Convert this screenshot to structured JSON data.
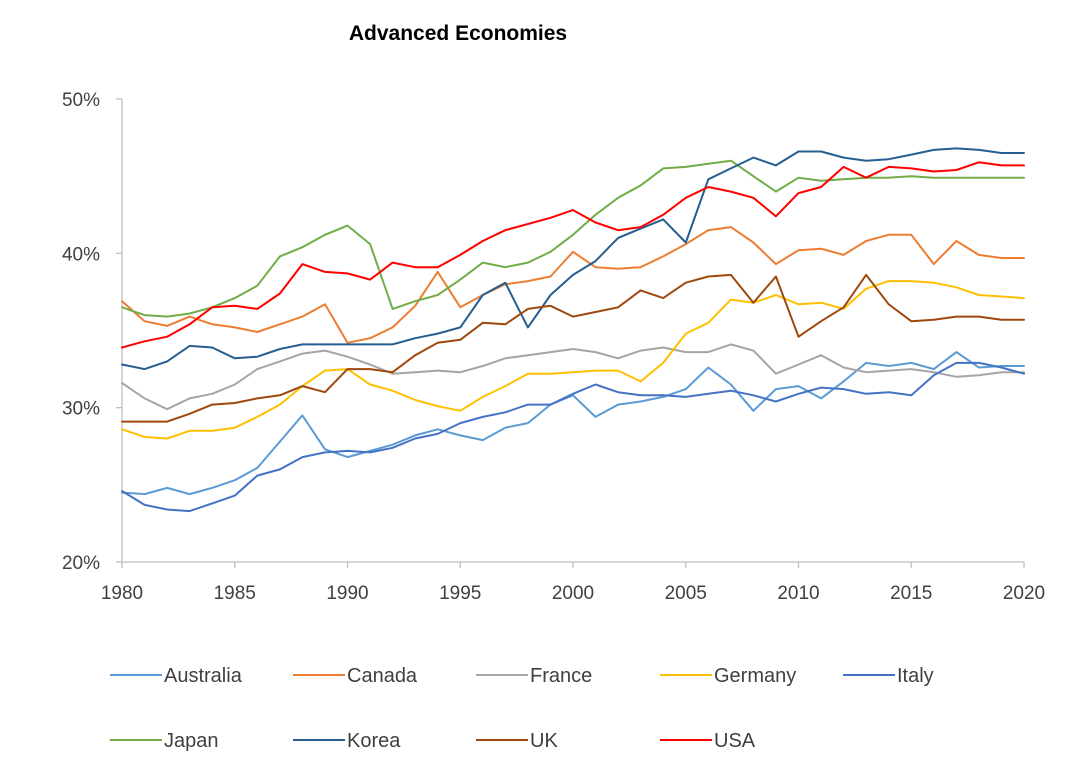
{
  "chart_data": {
    "type": "line",
    "title": "Advanced Economies",
    "xlabel": "",
    "ylabel": "",
    "xlim": [
      1980,
      2020
    ],
    "ylim": [
      20,
      50
    ],
    "x_ticks": [
      1980,
      1985,
      1990,
      1995,
      2000,
      2005,
      2010,
      2015,
      2020
    ],
    "y_ticks": [
      20,
      30,
      40,
      50
    ],
    "y_tick_labels": [
      "20%",
      "30%",
      "40%",
      "50%"
    ],
    "grid": false,
    "legend_position": "bottom",
    "x": [
      1980,
      1981,
      1982,
      1983,
      1984,
      1985,
      1986,
      1987,
      1988,
      1989,
      1990,
      1991,
      1992,
      1993,
      1994,
      1995,
      1996,
      1997,
      1998,
      1999,
      2000,
      2001,
      2002,
      2003,
      2004,
      2005,
      2006,
      2007,
      2008,
      2009,
      2010,
      2011,
      2012,
      2013,
      2014,
      2015,
      2016,
      2017,
      2018,
      2019,
      2020
    ],
    "series": [
      {
        "name": "Australia",
        "color": "#5B9BD5",
        "values": [
          24.5,
          24.4,
          24.8,
          24.4,
          24.8,
          25.3,
          26.1,
          27.8,
          29.5,
          27.3,
          26.8,
          27.2,
          27.6,
          28.2,
          28.6,
          28.2,
          27.9,
          28.7,
          29.0,
          30.2,
          30.8,
          29.4,
          30.2,
          30.4,
          30.7,
          31.2,
          32.6,
          31.5,
          29.8,
          31.2,
          31.4,
          30.6,
          31.7,
          32.9,
          32.7,
          32.9,
          32.5,
          33.6,
          32.6,
          32.7,
          32.7
        ]
      },
      {
        "name": "Canada",
        "color": "#ED7D31",
        "values": [
          36.9,
          35.6,
          35.3,
          35.9,
          35.4,
          35.2,
          34.9,
          35.4,
          35.9,
          36.7,
          34.2,
          34.5,
          35.2,
          36.6,
          38.8,
          36.5,
          37.3,
          38.0,
          38.2,
          38.5,
          40.1,
          39.1,
          39.0,
          39.1,
          39.8,
          40.6,
          41.5,
          41.7,
          40.7,
          39.3,
          40.2,
          40.3,
          39.9,
          40.8,
          41.2,
          41.2,
          39.3,
          40.8,
          39.9,
          39.7,
          39.7
        ]
      },
      {
        "name": "France",
        "color": "#A5A5A5",
        "values": [
          31.6,
          30.6,
          29.9,
          30.6,
          30.9,
          31.5,
          32.5,
          33.0,
          33.5,
          33.7,
          33.3,
          32.8,
          32.2,
          32.3,
          32.4,
          32.3,
          32.7,
          33.2,
          33.4,
          33.6,
          33.8,
          33.6,
          33.2,
          33.7,
          33.9,
          33.6,
          33.6,
          34.1,
          33.7,
          32.2,
          32.8,
          33.4,
          32.6,
          32.3,
          32.4,
          32.5,
          32.3,
          32.0,
          32.1,
          32.3,
          32.3
        ]
      },
      {
        "name": "Germany",
        "color": "#FFC000",
        "values": [
          28.6,
          28.1,
          28.0,
          28.5,
          28.5,
          28.7,
          29.4,
          30.2,
          31.4,
          32.4,
          32.5,
          31.5,
          31.1,
          30.5,
          30.1,
          29.8,
          30.7,
          31.4,
          32.2,
          32.2,
          32.3,
          32.4,
          32.4,
          31.7,
          32.9,
          34.8,
          35.5,
          37.0,
          36.8,
          37.3,
          36.7,
          36.8,
          36.4,
          37.7,
          38.2,
          38.2,
          38.1,
          37.8,
          37.3,
          37.2,
          37.1
        ]
      },
      {
        "name": "Italy",
        "color": "#4472C4",
        "values": [
          24.6,
          23.7,
          23.4,
          23.3,
          23.8,
          24.3,
          25.6,
          26.0,
          26.8,
          27.1,
          27.2,
          27.1,
          27.4,
          28.0,
          28.3,
          29.0,
          29.4,
          29.7,
          30.2,
          30.2,
          30.9,
          31.5,
          31.0,
          30.8,
          30.8,
          30.7,
          30.9,
          31.1,
          30.8,
          30.4,
          30.9,
          31.3,
          31.2,
          30.9,
          31.0,
          30.8,
          32.1,
          32.9,
          32.9,
          32.6,
          32.2
        ]
      },
      {
        "name": "Japan",
        "color": "#70AD47",
        "values": [
          36.5,
          36.0,
          35.9,
          36.1,
          36.5,
          37.1,
          37.9,
          39.8,
          40.4,
          41.2,
          41.8,
          40.6,
          36.4,
          36.9,
          37.3,
          38.3,
          39.4,
          39.1,
          39.4,
          40.1,
          41.2,
          42.5,
          43.6,
          44.4,
          45.5,
          45.6,
          45.8,
          46.0,
          45.0,
          44.0,
          44.9,
          44.7,
          44.8,
          44.9,
          44.9,
          45.0,
          44.9,
          44.9,
          44.9,
          44.9,
          44.9
        ]
      },
      {
        "name": "Korea",
        "color": "#255E91",
        "values": [
          32.8,
          32.5,
          33.0,
          34.0,
          33.9,
          33.2,
          33.3,
          33.8,
          34.1,
          34.1,
          34.1,
          34.1,
          34.1,
          34.5,
          34.8,
          35.2,
          37.3,
          38.1,
          35.2,
          37.3,
          38.6,
          39.5,
          41.0,
          41.6,
          42.2,
          40.7,
          44.8,
          45.5,
          46.2,
          45.7,
          46.6,
          46.6,
          46.2,
          46.0,
          46.1,
          46.4,
          46.7,
          46.8,
          46.7,
          46.5,
          46.5
        ]
      },
      {
        "name": "UK",
        "color": "#9E480E",
        "values": [
          29.1,
          29.1,
          29.1,
          29.6,
          30.2,
          30.3,
          30.6,
          30.8,
          31.4,
          31.0,
          32.5,
          32.5,
          32.3,
          33.4,
          34.2,
          34.4,
          35.5,
          35.4,
          36.4,
          36.6,
          35.9,
          36.2,
          36.5,
          37.6,
          37.1,
          38.1,
          38.5,
          38.6,
          36.8,
          38.5,
          34.6,
          35.6,
          36.5,
          38.6,
          36.7,
          35.6,
          35.7,
          35.9,
          35.9,
          35.7,
          35.7
        ]
      },
      {
        "name": "USA",
        "color": "#FF0000",
        "values": [
          33.9,
          34.3,
          34.6,
          35.4,
          36.5,
          36.6,
          36.4,
          37.4,
          39.3,
          38.8,
          38.7,
          38.3,
          39.4,
          39.1,
          39.1,
          39.9,
          40.8,
          41.5,
          41.9,
          42.3,
          42.8,
          42.0,
          41.5,
          41.7,
          42.5,
          43.6,
          44.3,
          44.0,
          43.6,
          42.4,
          43.9,
          44.3,
          45.6,
          44.9,
          45.6,
          45.5,
          45.3,
          45.4,
          45.9,
          45.7,
          45.7
        ]
      }
    ]
  }
}
